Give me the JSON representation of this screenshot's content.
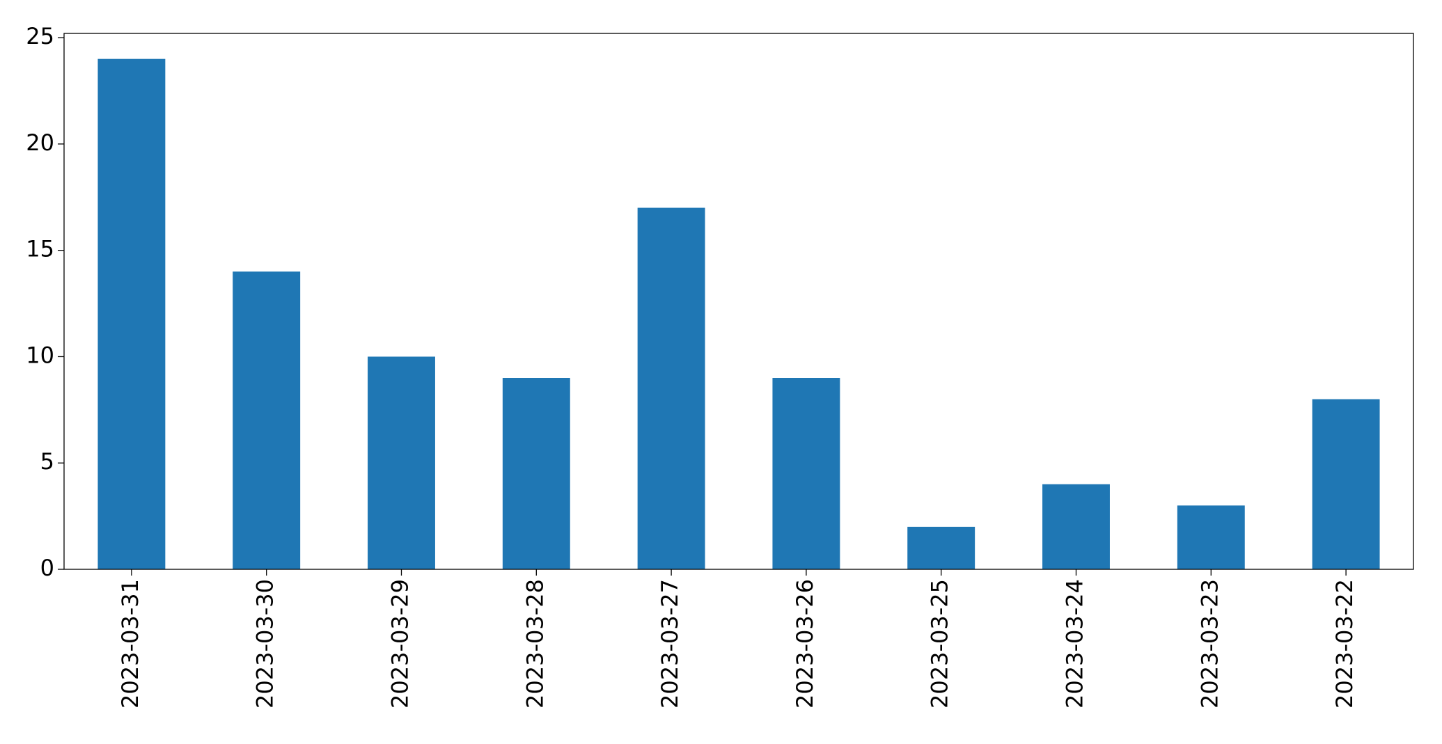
{
  "chart_data": {
    "type": "bar",
    "categories": [
      "2023-03-31",
      "2023-03-30",
      "2023-03-29",
      "2023-03-28",
      "2023-03-27",
      "2023-03-26",
      "2023-03-25",
      "2023-03-24",
      "2023-03-23",
      "2023-03-22"
    ],
    "values": [
      24,
      14,
      10,
      9,
      17,
      9,
      2,
      4,
      3,
      8
    ],
    "color": "#1f77b4",
    "ylim": [
      0,
      25.2
    ],
    "yticks": [
      0,
      5,
      10,
      15,
      20,
      25
    ],
    "grid": false
  }
}
